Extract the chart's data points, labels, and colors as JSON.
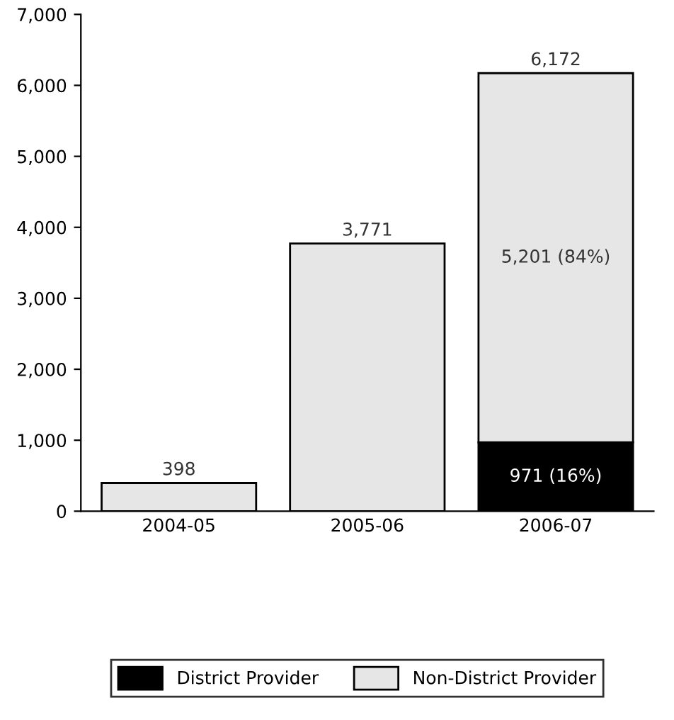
{
  "chart_data": {
    "type": "bar",
    "stacked": true,
    "categories": [
      "2004-05",
      "2005-06",
      "2006-07"
    ],
    "series": [
      {
        "name": "District Provider",
        "color": "#000000",
        "values": [
          null,
          null,
          971
        ],
        "value_labels": [
          null,
          null,
          "971 (16%)"
        ]
      },
      {
        "name": "Non-District Provider",
        "color": "#e6e6e6",
        "values": [
          398,
          3771,
          5201
        ],
        "value_labels": [
          null,
          null,
          "5,201 (84%)"
        ]
      }
    ],
    "totals": [
      "398",
      "3,771",
      "6,172"
    ],
    "ylim": [
      0,
      7000
    ],
    "yticks": [
      0,
      {
        "value": 1000,
        "label": "1,000"
      },
      {
        "value": 2000,
        "label": "2,000"
      },
      {
        "value": 3000,
        "label": "3,000"
      },
      {
        "value": 4000,
        "label": "4,000"
      },
      {
        "value": 5000,
        "label": "5,000"
      },
      {
        "value": 6000,
        "label": "6,000"
      },
      {
        "value": 7000,
        "label": "7,000"
      }
    ],
    "grid": false,
    "legend": "bottom"
  }
}
